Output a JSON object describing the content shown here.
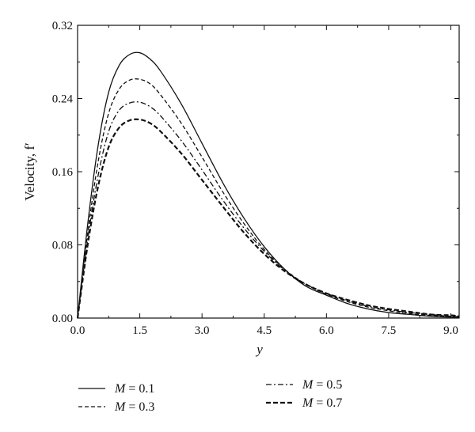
{
  "chart_data": {
    "type": "line",
    "title": "",
    "xlabel": "y",
    "ylabel": "Velocity, f′",
    "xlim": [
      0,
      9.2
    ],
    "ylim": [
      0,
      0.32
    ],
    "x_ticks": [
      "0.0",
      "1.5",
      "3.0",
      "4.5",
      "6.0",
      "7.5",
      "9.0"
    ],
    "x_tick_values": [
      0,
      1.5,
      3.0,
      4.5,
      6.0,
      7.5,
      9.0
    ],
    "y_ticks": [
      "0.00",
      "0.08",
      "0.16",
      "0.24",
      "0.32"
    ],
    "y_tick_values": [
      0,
      0.08,
      0.16,
      0.24,
      0.32
    ],
    "grid": false,
    "legend_position": "bottom",
    "series": [
      {
        "name": "M = 0.1",
        "label_var": "M",
        "label_rest": " = 0.1",
        "style": "solid",
        "x": [
          0,
          0.25,
          0.5,
          0.75,
          1.0,
          1.25,
          1.5,
          1.75,
          2.0,
          2.5,
          3.0,
          3.5,
          4.0,
          4.5,
          5.0,
          5.5,
          6.0,
          6.5,
          7.0,
          7.5,
          8.0,
          8.5,
          9.0,
          9.2
        ],
        "y": [
          0.0,
          0.105,
          0.19,
          0.247,
          0.276,
          0.288,
          0.29,
          0.283,
          0.27,
          0.234,
          0.191,
          0.148,
          0.11,
          0.078,
          0.053,
          0.035,
          0.025,
          0.016,
          0.01,
          0.006,
          0.004,
          0.002,
          0.001,
          0.001
        ]
      },
      {
        "name": "M = 0.3",
        "label_var": "M",
        "label_rest": " = 0.3",
        "style": "dashed",
        "x": [
          0,
          0.25,
          0.5,
          0.75,
          1.0,
          1.25,
          1.5,
          1.75,
          2.0,
          2.5,
          3.0,
          3.5,
          4.0,
          4.5,
          5.0,
          5.5,
          6.0,
          6.5,
          7.0,
          7.5,
          8.0,
          8.5,
          9.0,
          9.2
        ],
        "y": [
          0.0,
          0.095,
          0.172,
          0.224,
          0.25,
          0.26,
          0.261,
          0.256,
          0.244,
          0.213,
          0.176,
          0.138,
          0.104,
          0.075,
          0.053,
          0.037,
          0.026,
          0.018,
          0.012,
          0.008,
          0.005,
          0.003,
          0.002,
          0.001
        ]
      },
      {
        "name": "M = 0.5",
        "label_var": "M",
        "label_rest": " = 0.5",
        "style": "dashdot",
        "x": [
          0,
          0.25,
          0.5,
          0.75,
          1.0,
          1.25,
          1.5,
          1.75,
          2.0,
          2.5,
          3.0,
          3.5,
          4.0,
          4.5,
          5.0,
          5.5,
          6.0,
          6.5,
          7.0,
          7.5,
          8.0,
          8.5,
          9.0,
          9.2
        ],
        "y": [
          0.0,
          0.088,
          0.157,
          0.204,
          0.227,
          0.235,
          0.236,
          0.231,
          0.221,
          0.194,
          0.162,
          0.129,
          0.099,
          0.073,
          0.052,
          0.037,
          0.027,
          0.019,
          0.013,
          0.009,
          0.006,
          0.004,
          0.002,
          0.002
        ]
      },
      {
        "name": "M = 0.7",
        "label_var": "M",
        "label_rest": " = 0.7",
        "style": "bold-dashed",
        "x": [
          0,
          0.25,
          0.5,
          0.75,
          1.0,
          1.25,
          1.5,
          1.75,
          2.0,
          2.5,
          3.0,
          3.5,
          4.0,
          4.5,
          5.0,
          5.5,
          6.0,
          6.5,
          7.0,
          7.5,
          8.0,
          8.5,
          9.0,
          9.2
        ],
        "y": [
          0.0,
          0.082,
          0.145,
          0.187,
          0.208,
          0.216,
          0.217,
          0.213,
          0.204,
          0.18,
          0.151,
          0.122,
          0.094,
          0.07,
          0.051,
          0.037,
          0.027,
          0.02,
          0.014,
          0.01,
          0.007,
          0.004,
          0.003,
          0.002
        ]
      }
    ]
  }
}
